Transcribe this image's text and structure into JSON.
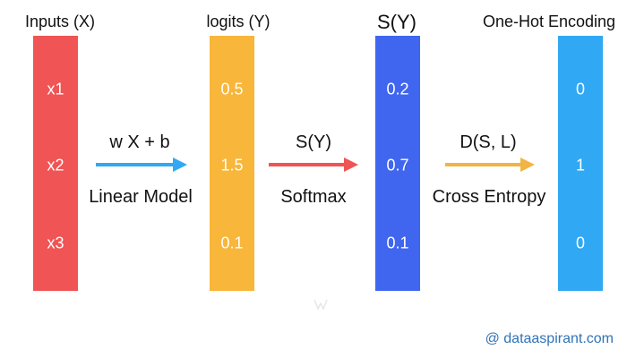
{
  "columns": [
    {
      "title": "Inputs (X)",
      "values": [
        "x1",
        "x2",
        "x3"
      ],
      "color": "#f05454"
    },
    {
      "title": "logits (Y)",
      "values": [
        "0.5",
        "1.5",
        "0.1"
      ],
      "color": "#f8b63a"
    },
    {
      "title": "S(Y)",
      "values": [
        "0.2",
        "0.7",
        "0.1"
      ],
      "color": "#4066f0"
    },
    {
      "title": "One-Hot Encoding",
      "values": [
        "0",
        "1",
        "0"
      ],
      "color": "#30a8f3"
    }
  ],
  "arrows": [
    {
      "top_label": "w X + b",
      "bottom_label": "Linear Model",
      "color": "#30a8f3"
    },
    {
      "top_label": "S(Y)",
      "bottom_label": "Softmax",
      "color": "#f05454"
    },
    {
      "top_label": "D(S, L)",
      "bottom_label": "Cross Entropy",
      "color": "#f2b444"
    }
  ],
  "watermark": "@ dataaspirant.com"
}
